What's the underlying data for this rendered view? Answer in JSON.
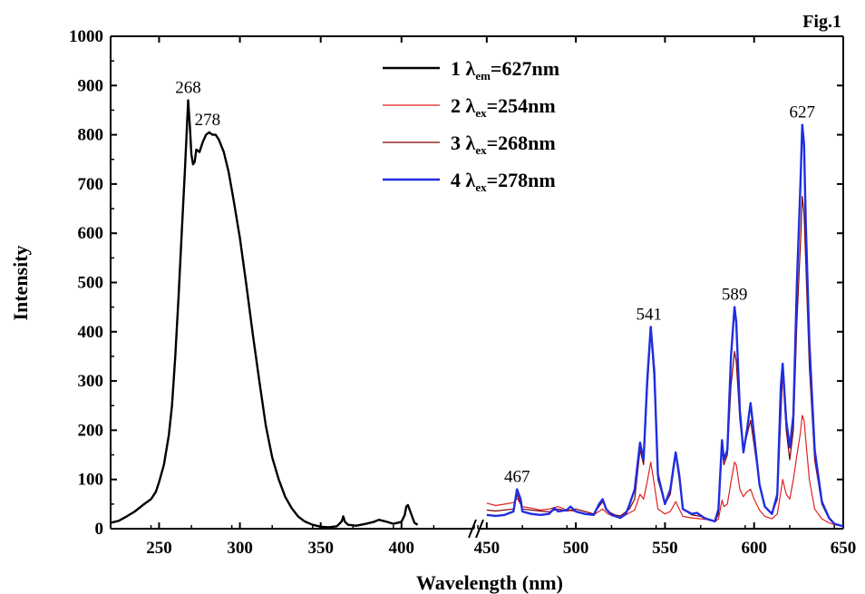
{
  "fig_label": "Fig.1",
  "chart_data": {
    "type": "line",
    "xlabel": "Wavelength (nm)",
    "ylabel": "Intensity",
    "ylim": [
      0,
      1000
    ],
    "yticks": [
      0,
      100,
      200,
      300,
      400,
      500,
      600,
      700,
      800,
      900,
      1000
    ],
    "axis_break": true,
    "segments": [
      {
        "xlim": [
          220,
          445
        ],
        "xticks": [
          250,
          300,
          350,
          400
        ]
      },
      {
        "xlim": [
          445,
          650
        ],
        "xticks": [
          450,
          500,
          550,
          600,
          650
        ]
      }
    ],
    "legend_position": "top-center",
    "series": [
      {
        "legend_num": "1",
        "legend_sym": "λ",
        "legend_sub": "em",
        "legend_rest": "=627nm",
        "color": "#000000",
        "segment": 0,
        "points": [
          [
            220,
            12
          ],
          [
            225,
            16
          ],
          [
            230,
            25
          ],
          [
            235,
            35
          ],
          [
            240,
            48
          ],
          [
            245,
            60
          ],
          [
            248,
            75
          ],
          [
            250,
            95
          ],
          [
            253,
            130
          ],
          [
            256,
            190
          ],
          [
            258,
            250
          ],
          [
            260,
            350
          ],
          [
            262,
            470
          ],
          [
            264,
            600
          ],
          [
            266,
            730
          ],
          [
            268,
            870
          ],
          [
            269,
            820
          ],
          [
            270,
            760
          ],
          [
            271,
            740
          ],
          [
            272,
            745
          ],
          [
            273,
            770
          ],
          [
            275,
            765
          ],
          [
            277,
            785
          ],
          [
            279,
            800
          ],
          [
            281,
            805
          ],
          [
            283,
            800
          ],
          [
            285,
            800
          ],
          [
            287,
            790
          ],
          [
            290,
            765
          ],
          [
            293,
            725
          ],
          [
            296,
            670
          ],
          [
            300,
            590
          ],
          [
            304,
            495
          ],
          [
            308,
            395
          ],
          [
            312,
            300
          ],
          [
            316,
            210
          ],
          [
            320,
            145
          ],
          [
            324,
            100
          ],
          [
            328,
            65
          ],
          [
            332,
            42
          ],
          [
            336,
            25
          ],
          [
            340,
            15
          ],
          [
            345,
            8
          ],
          [
            350,
            4
          ],
          [
            355,
            3
          ],
          [
            360,
            5
          ],
          [
            363,
            15
          ],
          [
            364,
            25
          ],
          [
            365,
            14
          ],
          [
            367,
            8
          ],
          [
            372,
            6
          ],
          [
            378,
            10
          ],
          [
            383,
            14
          ],
          [
            386,
            18
          ],
          [
            390,
            15
          ],
          [
            395,
            10
          ],
          [
            400,
            14
          ],
          [
            402,
            28
          ],
          [
            403,
            45
          ],
          [
            404,
            48
          ],
          [
            406,
            30
          ],
          [
            408,
            12
          ],
          [
            410,
            8
          ]
        ]
      },
      {
        "legend_num": "2",
        "legend_sym": "λ",
        "legend_sub": "ex",
        "legend_rest": "=254nm",
        "color": "#e02020",
        "segment": 1,
        "points": [
          [
            450,
            52
          ],
          [
            455,
            47
          ],
          [
            460,
            50
          ],
          [
            465,
            53
          ],
          [
            467,
            62
          ],
          [
            470,
            45
          ],
          [
            475,
            42
          ],
          [
            480,
            38
          ],
          [
            485,
            40
          ],
          [
            490,
            45
          ],
          [
            495,
            38
          ],
          [
            500,
            35
          ],
          [
            505,
            30
          ],
          [
            510,
            28
          ],
          [
            515,
            40
          ],
          [
            518,
            30
          ],
          [
            522,
            25
          ],
          [
            525,
            22
          ],
          [
            530,
            32
          ],
          [
            533,
            38
          ],
          [
            536,
            70
          ],
          [
            538,
            60
          ],
          [
            540,
            95
          ],
          [
            542,
            135
          ],
          [
            544,
            90
          ],
          [
            546,
            40
          ],
          [
            550,
            30
          ],
          [
            553,
            35
          ],
          [
            556,
            55
          ],
          [
            558,
            40
          ],
          [
            560,
            25
          ],
          [
            565,
            22
          ],
          [
            570,
            20
          ],
          [
            575,
            18
          ],
          [
            578,
            14
          ],
          [
            580,
            20
          ],
          [
            582,
            58
          ],
          [
            583,
            45
          ],
          [
            585,
            50
          ],
          [
            587,
            95
          ],
          [
            589,
            135
          ],
          [
            590,
            130
          ],
          [
            592,
            80
          ],
          [
            594,
            65
          ],
          [
            596,
            75
          ],
          [
            598,
            80
          ],
          [
            600,
            60
          ],
          [
            603,
            38
          ],
          [
            606,
            25
          ],
          [
            610,
            20
          ],
          [
            613,
            30
          ],
          [
            615,
            75
          ],
          [
            616,
            100
          ],
          [
            618,
            70
          ],
          [
            620,
            60
          ],
          [
            622,
            100
          ],
          [
            624,
            150
          ],
          [
            626,
            195
          ],
          [
            627,
            230
          ],
          [
            628,
            220
          ],
          [
            629,
            180
          ],
          [
            631,
            100
          ],
          [
            634,
            40
          ],
          [
            638,
            20
          ],
          [
            642,
            12
          ],
          [
            645,
            8
          ],
          [
            650,
            5
          ]
        ]
      },
      {
        "legend_num": "3",
        "legend_sym": "λ",
        "legend_sub": "ex",
        "legend_rest": "=268nm",
        "color": "#800000",
        "segment": 1,
        "points": [
          [
            450,
            38
          ],
          [
            455,
            36
          ],
          [
            460,
            38
          ],
          [
            465,
            40
          ],
          [
            467,
            70
          ],
          [
            470,
            40
          ],
          [
            475,
            38
          ],
          [
            480,
            36
          ],
          [
            485,
            34
          ],
          [
            490,
            40
          ],
          [
            495,
            36
          ],
          [
            500,
            40
          ],
          [
            505,
            35
          ],
          [
            510,
            30
          ],
          [
            515,
            55
          ],
          [
            518,
            35
          ],
          [
            522,
            28
          ],
          [
            525,
            26
          ],
          [
            530,
            40
          ],
          [
            533,
            60
          ],
          [
            536,
            160
          ],
          [
            538,
            130
          ],
          [
            540,
            280
          ],
          [
            542,
            400
          ],
          [
            544,
            300
          ],
          [
            546,
            100
          ],
          [
            550,
            50
          ],
          [
            553,
            70
          ],
          [
            556,
            150
          ],
          [
            558,
            100
          ],
          [
            560,
            40
          ],
          [
            565,
            28
          ],
          [
            570,
            25
          ],
          [
            575,
            18
          ],
          [
            578,
            14
          ],
          [
            580,
            30
          ],
          [
            582,
            170
          ],
          [
            583,
            130
          ],
          [
            585,
            150
          ],
          [
            587,
            290
          ],
          [
            589,
            360
          ],
          [
            590,
            340
          ],
          [
            592,
            220
          ],
          [
            594,
            160
          ],
          [
            596,
            190
          ],
          [
            598,
            220
          ],
          [
            600,
            170
          ],
          [
            603,
            90
          ],
          [
            606,
            45
          ],
          [
            610,
            30
          ],
          [
            613,
            60
          ],
          [
            615,
            230
          ],
          [
            616,
            320
          ],
          [
            618,
            200
          ],
          [
            620,
            140
          ],
          [
            622,
            200
          ],
          [
            624,
            420
          ],
          [
            626,
            580
          ],
          [
            627,
            675
          ],
          [
            628,
            640
          ],
          [
            629,
            540
          ],
          [
            631,
            330
          ],
          [
            634,
            140
          ],
          [
            638,
            50
          ],
          [
            642,
            20
          ],
          [
            645,
            10
          ],
          [
            650,
            5
          ]
        ]
      },
      {
        "legend_num": "4",
        "legend_sym": "λ",
        "legend_sub": "ex",
        "legend_rest": "=278nm",
        "color": "#1f2ee0",
        "segment": 1,
        "points": [
          [
            450,
            28
          ],
          [
            455,
            26
          ],
          [
            460,
            28
          ],
          [
            465,
            35
          ],
          [
            467,
            80
          ],
          [
            469,
            60
          ],
          [
            470,
            35
          ],
          [
            475,
            30
          ],
          [
            480,
            28
          ],
          [
            485,
            30
          ],
          [
            488,
            42
          ],
          [
            490,
            35
          ],
          [
            495,
            38
          ],
          [
            497,
            45
          ],
          [
            500,
            35
          ],
          [
            505,
            30
          ],
          [
            510,
            28
          ],
          [
            513,
            50
          ],
          [
            515,
            60
          ],
          [
            517,
            40
          ],
          [
            520,
            28
          ],
          [
            525,
            22
          ],
          [
            528,
            30
          ],
          [
            530,
            48
          ],
          [
            533,
            80
          ],
          [
            536,
            175
          ],
          [
            538,
            140
          ],
          [
            540,
            300
          ],
          [
            542,
            410
          ],
          [
            544,
            320
          ],
          [
            546,
            110
          ],
          [
            550,
            50
          ],
          [
            553,
            80
          ],
          [
            556,
            155
          ],
          [
            558,
            110
          ],
          [
            560,
            40
          ],
          [
            565,
            30
          ],
          [
            568,
            32
          ],
          [
            572,
            22
          ],
          [
            575,
            18
          ],
          [
            578,
            15
          ],
          [
            580,
            40
          ],
          [
            582,
            180
          ],
          [
            583,
            140
          ],
          [
            585,
            160
          ],
          [
            587,
            350
          ],
          [
            589,
            450
          ],
          [
            590,
            420
          ],
          [
            592,
            240
          ],
          [
            594,
            155
          ],
          [
            596,
            200
          ],
          [
            598,
            255
          ],
          [
            600,
            190
          ],
          [
            603,
            90
          ],
          [
            606,
            45
          ],
          [
            610,
            30
          ],
          [
            613,
            70
          ],
          [
            615,
            290
          ],
          [
            616,
            335
          ],
          [
            618,
            220
          ],
          [
            620,
            165
          ],
          [
            622,
            230
          ],
          [
            624,
            500
          ],
          [
            626,
            700
          ],
          [
            627,
            820
          ],
          [
            628,
            780
          ],
          [
            629,
            620
          ],
          [
            631,
            380
          ],
          [
            634,
            160
          ],
          [
            638,
            55
          ],
          [
            642,
            22
          ],
          [
            645,
            10
          ],
          [
            650,
            5
          ]
        ]
      }
    ],
    "annotations": [
      {
        "text": "268",
        "x": 268,
        "y": 870,
        "segment": 0
      },
      {
        "text": "278",
        "x": 280,
        "y": 805,
        "segment": 0
      },
      {
        "text": "467",
        "x": 467,
        "y": 80,
        "segment": 1
      },
      {
        "text": "541",
        "x": 541,
        "y": 410,
        "segment": 1
      },
      {
        "text": "589",
        "x": 589,
        "y": 450,
        "segment": 1
      },
      {
        "text": "627",
        "x": 627,
        "y": 820,
        "segment": 1
      }
    ]
  }
}
